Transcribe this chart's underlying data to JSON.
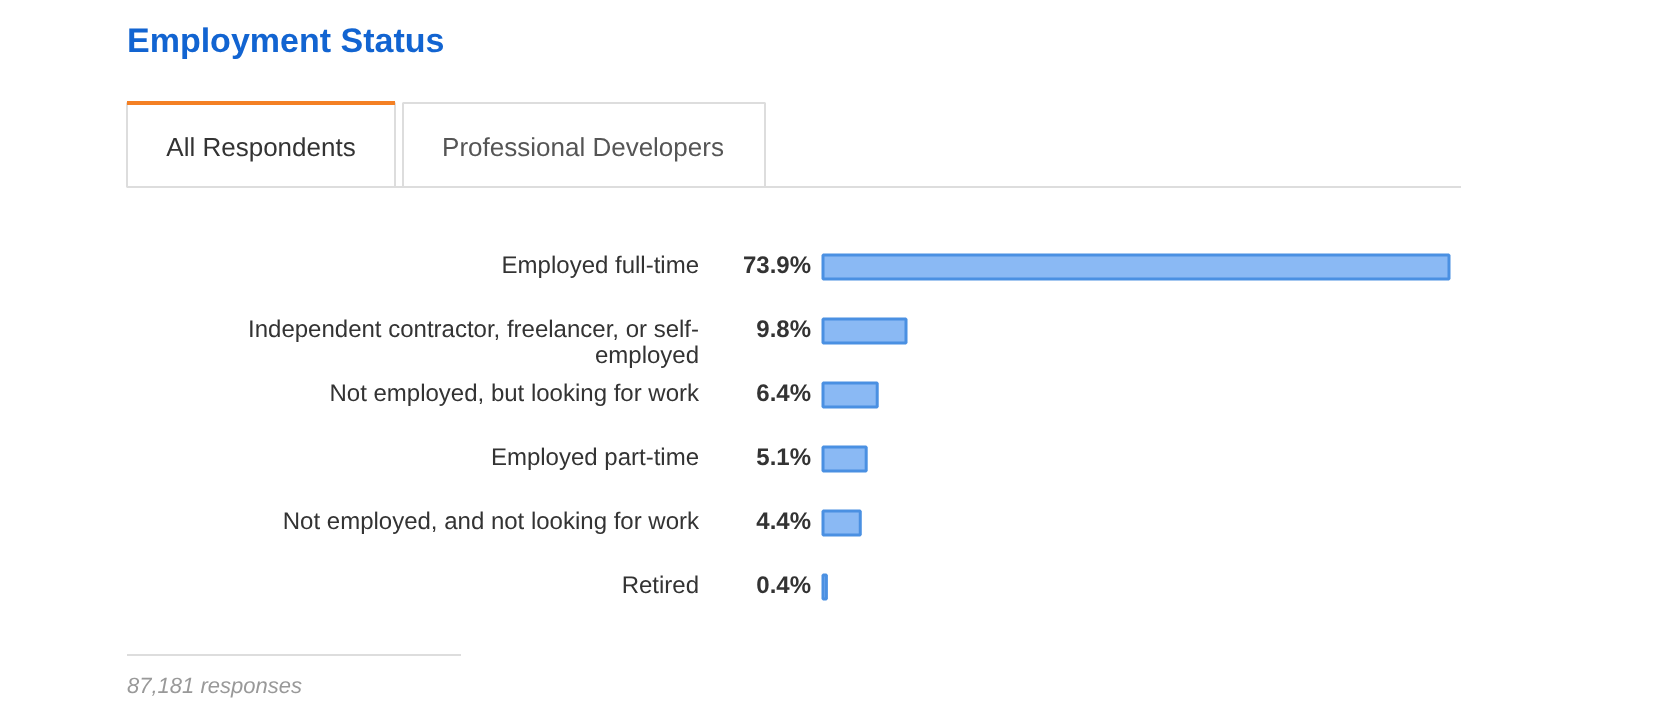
{
  "chart_data": {
    "type": "bar",
    "orientation": "horizontal",
    "title": "Employment Status",
    "categories": [
      "Employed full-time",
      "Independent contractor, freelancer, or self-employed",
      "Not employed, but looking for work",
      "Employed part-time",
      "Not employed, and not looking for work",
      "Retired"
    ],
    "values": [
      73.9,
      9.8,
      6.4,
      5.1,
      4.4,
      0.4
    ],
    "value_labels": [
      "73.9%",
      "9.8%",
      "6.4%",
      "5.1%",
      "4.4%",
      "0.4%"
    ],
    "color": "#8ab9f4",
    "annotations": [
      "All Respondents",
      "Professional Developers",
      "87,181 responses"
    ]
  }
}
